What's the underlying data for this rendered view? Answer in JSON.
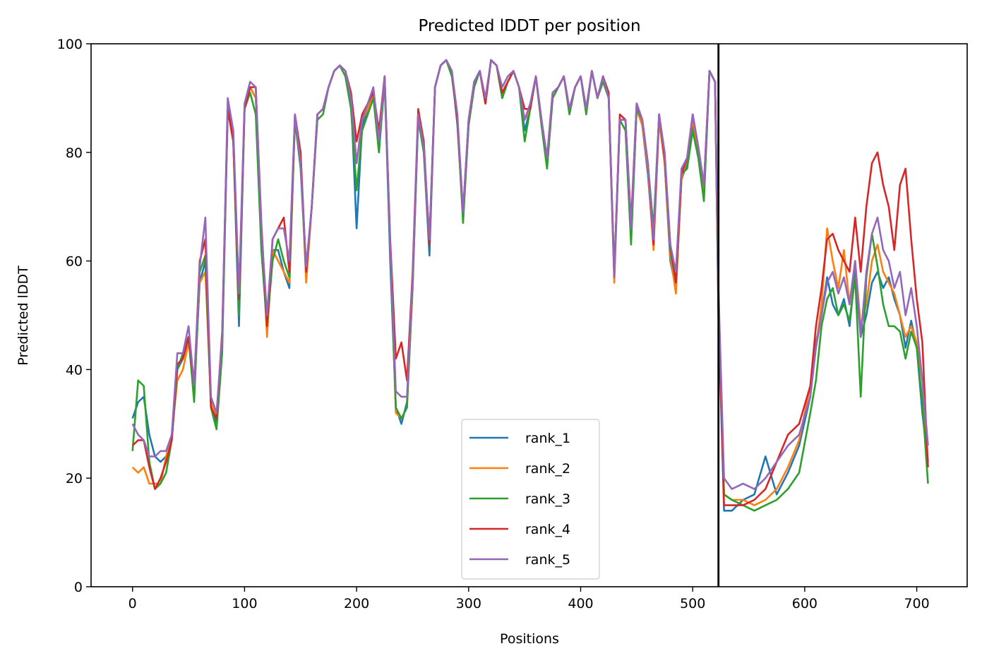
{
  "chart_data": {
    "type": "line",
    "title": "Predicted lDDT per position",
    "xlabel": "Positions",
    "ylabel": "Predicted lDDT",
    "xlim": [
      -37,
      745
    ],
    "ylim": [
      0,
      100
    ],
    "xticks": [
      0,
      100,
      200,
      300,
      400,
      500,
      600,
      700
    ],
    "yticks": [
      0,
      20,
      40,
      60,
      80,
      100
    ],
    "grid": false,
    "legend_position": "lower center",
    "chain_boundary_x": 523,
    "colors": {
      "rank_1": "#1f77b4",
      "rank_2": "#ff7f0e",
      "rank_3": "#2ca02c",
      "rank_4": "#d62728",
      "rank_5": "#9467bd",
      "boundary": "#000000"
    },
    "x": [
      0,
      5,
      10,
      15,
      20,
      25,
      30,
      35,
      40,
      45,
      50,
      55,
      60,
      65,
      70,
      75,
      80,
      85,
      90,
      95,
      100,
      105,
      110,
      115,
      120,
      125,
      130,
      135,
      140,
      145,
      150,
      155,
      160,
      165,
      170,
      175,
      180,
      185,
      190,
      195,
      200,
      205,
      210,
      215,
      220,
      225,
      230,
      235,
      240,
      245,
      250,
      255,
      260,
      265,
      270,
      275,
      280,
      285,
      290,
      295,
      300,
      305,
      310,
      315,
      320,
      325,
      330,
      335,
      340,
      345,
      350,
      355,
      360,
      365,
      370,
      375,
      380,
      385,
      390,
      395,
      400,
      405,
      410,
      415,
      420,
      425,
      430,
      435,
      440,
      445,
      450,
      455,
      460,
      465,
      470,
      475,
      480,
      485,
      490,
      495,
      500,
      505,
      510,
      515,
      520,
      523,
      528,
      535,
      545,
      555,
      565,
      575,
      585,
      595,
      605,
      610,
      615,
      620,
      625,
      630,
      635,
      640,
      645,
      650,
      655,
      660,
      665,
      670,
      675,
      680,
      685,
      690,
      695,
      700,
      705,
      710
    ],
    "series": [
      {
        "name": "rank_1",
        "values": [
          31,
          34,
          35,
          28,
          24,
          23,
          24,
          27,
          40,
          42,
          46,
          36,
          56,
          60,
          34,
          30,
          45,
          88,
          82,
          48,
          88,
          92,
          90,
          65,
          47,
          62,
          62,
          58,
          55,
          86,
          78,
          58,
          70,
          87,
          88,
          92,
          95,
          96,
          95,
          90,
          66,
          85,
          88,
          91,
          80,
          94,
          60,
          33,
          30,
          34,
          55,
          87,
          80,
          61,
          92,
          96,
          97,
          95,
          85,
          68,
          85,
          93,
          95,
          89,
          97,
          96,
          90,
          93,
          95,
          92,
          84,
          88,
          94,
          86,
          78,
          90,
          92,
          94,
          88,
          92,
          94,
          88,
          95,
          90,
          94,
          90,
          58,
          86,
          86,
          66,
          88,
          85,
          76,
          63,
          86,
          78,
          60,
          55,
          75,
          78,
          85,
          80,
          72,
          95,
          93,
          50,
          14,
          14,
          16,
          17,
          24,
          17,
          21,
          26,
          35,
          45,
          50,
          57,
          52,
          50,
          53,
          48,
          58,
          46,
          50,
          56,
          58,
          55,
          57,
          53,
          50,
          44,
          49,
          44,
          32,
          23
        ]
      },
      {
        "name": "rank_2",
        "values": [
          22,
          21,
          22,
          19,
          19,
          19,
          24,
          28,
          38,
          40,
          45,
          38,
          56,
          58,
          34,
          31,
          46,
          88,
          82,
          51,
          88,
          92,
          90,
          66,
          46,
          62,
          60,
          58,
          56,
          86,
          79,
          56,
          70,
          87,
          88,
          92,
          95,
          96,
          95,
          90,
          78,
          86,
          88,
          91,
          83,
          94,
          63,
          32,
          31,
          33,
          55,
          87,
          80,
          63,
          92,
          96,
          97,
          95,
          86,
          68,
          86,
          93,
          95,
          89,
          97,
          96,
          91,
          93,
          95,
          92,
          86,
          88,
          94,
          86,
          78,
          90,
          92,
          94,
          88,
          92,
          94,
          88,
          95,
          90,
          94,
          90,
          56,
          86,
          86,
          65,
          88,
          85,
          77,
          62,
          86,
          78,
          61,
          54,
          75,
          79,
          86,
          80,
          73,
          95,
          93,
          52,
          17,
          16,
          16,
          15,
          16,
          18,
          22,
          27,
          37,
          44,
          52,
          66,
          60,
          55,
          62,
          52,
          60,
          48,
          52,
          60,
          63,
          58,
          56,
          54,
          50,
          46,
          48,
          45,
          38,
          22
        ]
      },
      {
        "name": "rank_3",
        "values": [
          25,
          38,
          37,
          23,
          18,
          19,
          21,
          27,
          40,
          43,
          46,
          34,
          58,
          61,
          33,
          29,
          43,
          88,
          82,
          50,
          88,
          91,
          87,
          62,
          48,
          60,
          64,
          60,
          57,
          86,
          77,
          58,
          70,
          86,
          87,
          92,
          95,
          96,
          94,
          88,
          73,
          84,
          87,
          90,
          80,
          93,
          62,
          33,
          31,
          33,
          56,
          86,
          80,
          64,
          92,
          96,
          97,
          94,
          86,
          67,
          85,
          92,
          95,
          89,
          97,
          96,
          90,
          93,
          95,
          92,
          82,
          88,
          94,
          85,
          77,
          90,
          92,
          94,
          87,
          92,
          94,
          87,
          95,
          90,
          93,
          90,
          58,
          86,
          84,
          63,
          88,
          86,
          78,
          66,
          87,
          79,
          62,
          56,
          76,
          77,
          84,
          79,
          71,
          95,
          93,
          50,
          17,
          16,
          15,
          14,
          15,
          16,
          18,
          21,
          32,
          38,
          48,
          53,
          55,
          50,
          52,
          49,
          57,
          35,
          57,
          65,
          59,
          52,
          48,
          48,
          47,
          42,
          47,
          44,
          34,
          19
        ]
      },
      {
        "name": "rank_4",
        "values": [
          26,
          27,
          27,
          22,
          18,
          20,
          23,
          27,
          41,
          42,
          46,
          37,
          60,
          64,
          33,
          31,
          47,
          88,
          82,
          53,
          88,
          92,
          92,
          67,
          48,
          64,
          66,
          68,
          58,
          87,
          80,
          58,
          70,
          87,
          88,
          92,
          95,
          96,
          95,
          91,
          82,
          87,
          89,
          91,
          84,
          94,
          64,
          42,
          45,
          38,
          58,
          88,
          82,
          63,
          92,
          96,
          97,
          95,
          86,
          69,
          86,
          93,
          95,
          89,
          97,
          96,
          91,
          93,
          95,
          92,
          88,
          88,
          94,
          86,
          79,
          91,
          92,
          94,
          88,
          92,
          94,
          88,
          95,
          90,
          94,
          91,
          57,
          87,
          86,
          67,
          89,
          86,
          78,
          63,
          87,
          79,
          63,
          56,
          76,
          79,
          87,
          81,
          74,
          95,
          93,
          52,
          15,
          15,
          15,
          16,
          18,
          23,
          28,
          30,
          37,
          48,
          55,
          64,
          65,
          62,
          60,
          58,
          68,
          58,
          70,
          78,
          80,
          74,
          70,
          62,
          74,
          77,
          64,
          53,
          45,
          22
        ]
      },
      {
        "name": "rank_5",
        "values": [
          30,
          28,
          27,
          24,
          24,
          25,
          25,
          28,
          43,
          43,
          48,
          37,
          59,
          68,
          35,
          32,
          46,
          90,
          84,
          54,
          89,
          93,
          92,
          66,
          50,
          64,
          66,
          66,
          60,
          87,
          78,
          59,
          70,
          87,
          88,
          92,
          95,
          96,
          95,
          90,
          78,
          86,
          89,
          92,
          82,
          94,
          63,
          36,
          35,
          35,
          57,
          87,
          81,
          64,
          92,
          96,
          97,
          95,
          87,
          69,
          86,
          93,
          95,
          90,
          97,
          96,
          92,
          94,
          95,
          92,
          86,
          89,
          94,
          86,
          79,
          91,
          92,
          94,
          88,
          92,
          94,
          88,
          95,
          90,
          94,
          90,
          57,
          86,
          86,
          66,
          89,
          86,
          78,
          64,
          87,
          80,
          63,
          58,
          77,
          79,
          87,
          81,
          74,
          95,
          93,
          55,
          20,
          18,
          19,
          18,
          20,
          23,
          26,
          28,
          35,
          44,
          50,
          56,
          58,
          54,
          57,
          52,
          60,
          46,
          58,
          65,
          68,
          62,
          60,
          55,
          58,
          50,
          55,
          48,
          38,
          26
        ]
      }
    ]
  }
}
